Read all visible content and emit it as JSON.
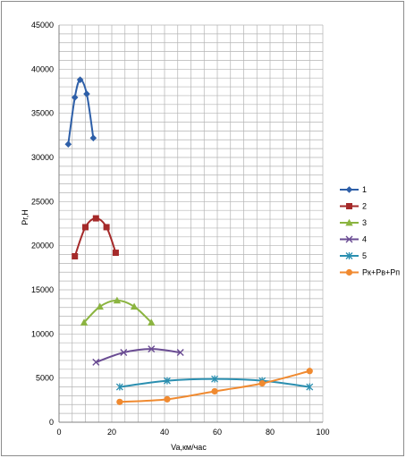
{
  "chart_data": {
    "type": "line",
    "title": "",
    "xlabel": "Va,км/час",
    "ylabel": "Pr,Н",
    "xlim": [
      0,
      100
    ],
    "ylim": [
      0,
      45000
    ],
    "x_ticks": [
      0,
      20,
      40,
      60,
      80,
      100
    ],
    "y_ticks": [
      0,
      5000,
      10000,
      15000,
      20000,
      25000,
      30000,
      35000,
      40000,
      45000
    ],
    "grid": "major and minor",
    "legend_position": "right",
    "series": [
      {
        "name": "1",
        "color": "#2e5fa8",
        "marker": "diamond",
        "x": [
          3.5,
          6,
          8,
          10.5,
          13
        ],
        "y": [
          31500,
          36800,
          38800,
          37200,
          32200
        ]
      },
      {
        "name": "2",
        "color": "#a52a2a",
        "marker": "square",
        "x": [
          6,
          10,
          14,
          18,
          21.5
        ],
        "y": [
          18800,
          22100,
          23100,
          22100,
          19200
        ]
      },
      {
        "name": "3",
        "color": "#8bb440",
        "marker": "triangle",
        "x": [
          9.5,
          15.5,
          22,
          28.5,
          35
        ],
        "y": [
          11300,
          13100,
          13800,
          13100,
          11300
        ]
      },
      {
        "name": "4",
        "color": "#6a4c93",
        "marker": "x",
        "x": [
          14,
          24.5,
          35,
          46
        ],
        "y": [
          6800,
          7900,
          8300,
          7900
        ]
      },
      {
        "name": "5",
        "color": "#2b8fb0",
        "marker": "star",
        "x": [
          23,
          41,
          59,
          77,
          95
        ],
        "y": [
          4000,
          4700,
          4900,
          4700,
          4000
        ]
      },
      {
        "name": "Рк+Рв+Рп",
        "color": "#f08a30",
        "marker": "circle",
        "x": [
          23,
          41,
          59,
          77,
          95
        ],
        "y": [
          2300,
          2600,
          3500,
          4400,
          5800
        ]
      }
    ]
  }
}
